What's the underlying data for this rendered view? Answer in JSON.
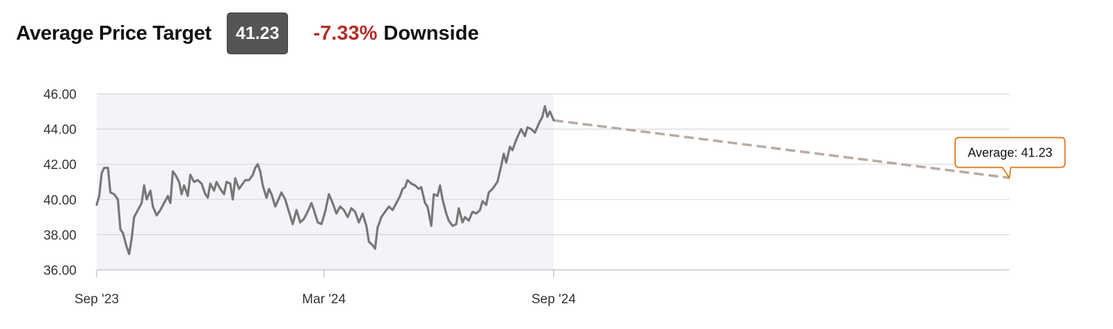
{
  "header": {
    "title": "Average Price Target",
    "target_value": "41.23",
    "change_value": "-7.33%",
    "change_label": "Downside"
  },
  "colors": {
    "history_line": "#777777",
    "history_band": "#f3f4f8",
    "forecast_line": "#b8aaa2",
    "downside_text": "#b32d2a",
    "badge_background": "#555555",
    "tooltip_border": "#e07a1f",
    "grid": "#d8d8d8"
  },
  "chart_data": {
    "type": "line",
    "y_range": [
      36,
      46
    ],
    "y_ticks": [
      "46.00",
      "44.00",
      "42.00",
      "40.00",
      "38.00",
      "36.00"
    ],
    "x_ticks": [
      {
        "label": "Sep '23",
        "date": "2023-09-01"
      },
      {
        "label": "Mar '24",
        "date": "2024-03-01"
      },
      {
        "label": "Sep '24",
        "date": "2024-09-01"
      }
    ],
    "x_range": [
      "2023-09-01",
      "2025-09-01"
    ],
    "history_end_date": "2024-09-01",
    "grid": true,
    "series": [
      {
        "kind": "history",
        "points": [
          [
            "2023-09-01",
            39.7
          ],
          [
            "2023-09-03",
            40.2
          ],
          [
            "2023-09-05",
            41.5
          ],
          [
            "2023-09-07",
            41.8
          ],
          [
            "2023-09-10",
            41.8
          ],
          [
            "2023-09-12",
            40.4
          ],
          [
            "2023-09-15",
            40.3
          ],
          [
            "2023-09-18",
            40.0
          ],
          [
            "2023-09-20",
            38.3
          ],
          [
            "2023-09-22",
            38.1
          ],
          [
            "2023-09-25",
            37.3
          ],
          [
            "2023-09-27",
            36.9
          ],
          [
            "2023-09-29",
            37.8
          ],
          [
            "2023-10-01",
            39.0
          ],
          [
            "2023-10-04",
            39.4
          ],
          [
            "2023-10-07",
            39.8
          ],
          [
            "2023-10-09",
            40.8
          ],
          [
            "2023-10-11",
            40.0
          ],
          [
            "2023-10-14",
            40.5
          ],
          [
            "2023-10-16",
            39.6
          ],
          [
            "2023-10-19",
            39.1
          ],
          [
            "2023-10-22",
            39.4
          ],
          [
            "2023-10-25",
            39.8
          ],
          [
            "2023-10-28",
            40.2
          ],
          [
            "2023-10-30",
            39.8
          ],
          [
            "2023-11-01",
            41.6
          ],
          [
            "2023-11-03",
            41.4
          ],
          [
            "2023-11-06",
            41.0
          ],
          [
            "2023-11-08",
            40.3
          ],
          [
            "2023-11-10",
            40.8
          ],
          [
            "2023-11-13",
            40.2
          ],
          [
            "2023-11-15",
            41.4
          ],
          [
            "2023-11-18",
            41.0
          ],
          [
            "2023-11-21",
            41.1
          ],
          [
            "2023-11-24",
            40.9
          ],
          [
            "2023-11-27",
            40.3
          ],
          [
            "2023-11-29",
            40.1
          ],
          [
            "2023-12-01",
            40.9
          ],
          [
            "2023-12-04",
            40.5
          ],
          [
            "2023-12-06",
            41.0
          ],
          [
            "2023-12-09",
            40.6
          ],
          [
            "2023-12-12",
            40.3
          ],
          [
            "2023-12-14",
            41.0
          ],
          [
            "2023-12-17",
            40.9
          ],
          [
            "2023-12-19",
            40.0
          ],
          [
            "2023-12-21",
            41.2
          ],
          [
            "2023-12-24",
            40.6
          ],
          [
            "2023-12-27",
            40.9
          ],
          [
            "2023-12-29",
            41.1
          ],
          [
            "2024-01-01",
            41.1
          ],
          [
            "2024-01-04",
            41.4
          ],
          [
            "2024-01-06",
            41.8
          ],
          [
            "2024-01-08",
            42.0
          ],
          [
            "2024-01-10",
            41.6
          ],
          [
            "2024-01-12",
            40.8
          ],
          [
            "2024-01-15",
            40.1
          ],
          [
            "2024-01-17",
            40.6
          ],
          [
            "2024-01-19",
            40.3
          ],
          [
            "2024-01-22",
            39.6
          ],
          [
            "2024-01-24",
            39.9
          ],
          [
            "2024-01-27",
            40.4
          ],
          [
            "2024-01-30",
            40.0
          ],
          [
            "2024-02-02",
            39.3
          ],
          [
            "2024-02-05",
            38.6
          ],
          [
            "2024-02-08",
            39.4
          ],
          [
            "2024-02-11",
            38.7
          ],
          [
            "2024-02-14",
            38.9
          ],
          [
            "2024-02-17",
            39.3
          ],
          [
            "2024-02-20",
            39.8
          ],
          [
            "2024-02-22",
            39.4
          ],
          [
            "2024-02-25",
            38.7
          ],
          [
            "2024-02-28",
            38.6
          ],
          [
            "2024-03-02",
            39.3
          ],
          [
            "2024-03-05",
            40.3
          ],
          [
            "2024-03-08",
            39.8
          ],
          [
            "2024-03-11",
            39.2
          ],
          [
            "2024-03-14",
            39.6
          ],
          [
            "2024-03-17",
            39.4
          ],
          [
            "2024-03-20",
            39.0
          ],
          [
            "2024-03-23",
            39.5
          ],
          [
            "2024-03-26",
            39.3
          ],
          [
            "2024-03-29",
            38.7
          ],
          [
            "2024-04-01",
            39.2
          ],
          [
            "2024-04-04",
            38.5
          ],
          [
            "2024-04-06",
            37.6
          ],
          [
            "2024-04-09",
            37.4
          ],
          [
            "2024-04-11",
            37.2
          ],
          [
            "2024-04-13",
            38.4
          ],
          [
            "2024-04-16",
            39.0
          ],
          [
            "2024-04-19",
            39.3
          ],
          [
            "2024-04-22",
            39.6
          ],
          [
            "2024-04-25",
            39.4
          ],
          [
            "2024-04-28",
            39.8
          ],
          [
            "2024-05-01",
            40.2
          ],
          [
            "2024-05-03",
            40.6
          ],
          [
            "2024-05-05",
            40.7
          ],
          [
            "2024-05-07",
            41.1
          ],
          [
            "2024-05-10",
            40.9
          ],
          [
            "2024-05-13",
            40.8
          ],
          [
            "2024-05-16",
            40.6
          ],
          [
            "2024-05-18",
            40.7
          ],
          [
            "2024-05-21",
            39.8
          ],
          [
            "2024-05-23",
            39.6
          ],
          [
            "2024-05-26",
            38.5
          ],
          [
            "2024-05-28",
            40.3
          ],
          [
            "2024-05-31",
            40.2
          ],
          [
            "2024-06-02",
            40.8
          ],
          [
            "2024-06-04",
            40.0
          ],
          [
            "2024-06-07",
            39.2
          ],
          [
            "2024-06-09",
            38.8
          ],
          [
            "2024-06-12",
            38.5
          ],
          [
            "2024-06-15",
            38.6
          ],
          [
            "2024-06-17",
            39.5
          ],
          [
            "2024-06-20",
            38.7
          ],
          [
            "2024-06-22",
            39.0
          ],
          [
            "2024-06-25",
            38.8
          ],
          [
            "2024-06-28",
            39.3
          ],
          [
            "2024-07-01",
            39.2
          ],
          [
            "2024-07-04",
            39.4
          ],
          [
            "2024-07-06",
            39.9
          ],
          [
            "2024-07-09",
            39.7
          ],
          [
            "2024-07-11",
            40.4
          ],
          [
            "2024-07-14",
            40.6
          ],
          [
            "2024-07-16",
            40.8
          ],
          [
            "2024-07-18",
            41.0
          ],
          [
            "2024-07-21",
            41.9
          ],
          [
            "2024-07-23",
            42.6
          ],
          [
            "2024-07-25",
            42.1
          ],
          [
            "2024-07-28",
            43.0
          ],
          [
            "2024-07-30",
            42.8
          ],
          [
            "2024-08-02",
            43.4
          ],
          [
            "2024-08-04",
            43.7
          ],
          [
            "2024-08-06",
            44.0
          ],
          [
            "2024-08-09",
            43.6
          ],
          [
            "2024-08-11",
            44.1
          ],
          [
            "2024-08-14",
            44.0
          ],
          [
            "2024-08-17",
            43.8
          ],
          [
            "2024-08-20",
            44.3
          ],
          [
            "2024-08-23",
            44.7
          ],
          [
            "2024-08-25",
            45.3
          ],
          [
            "2024-08-27",
            44.7
          ],
          [
            "2024-08-29",
            45.0
          ],
          [
            "2024-09-01",
            44.5
          ]
        ]
      },
      {
        "kind": "forecast",
        "points": [
          [
            "2024-09-01",
            44.5
          ],
          [
            "2025-09-01",
            41.23
          ]
        ]
      }
    ],
    "annotation": {
      "label": "Average: 41.23"
    }
  }
}
